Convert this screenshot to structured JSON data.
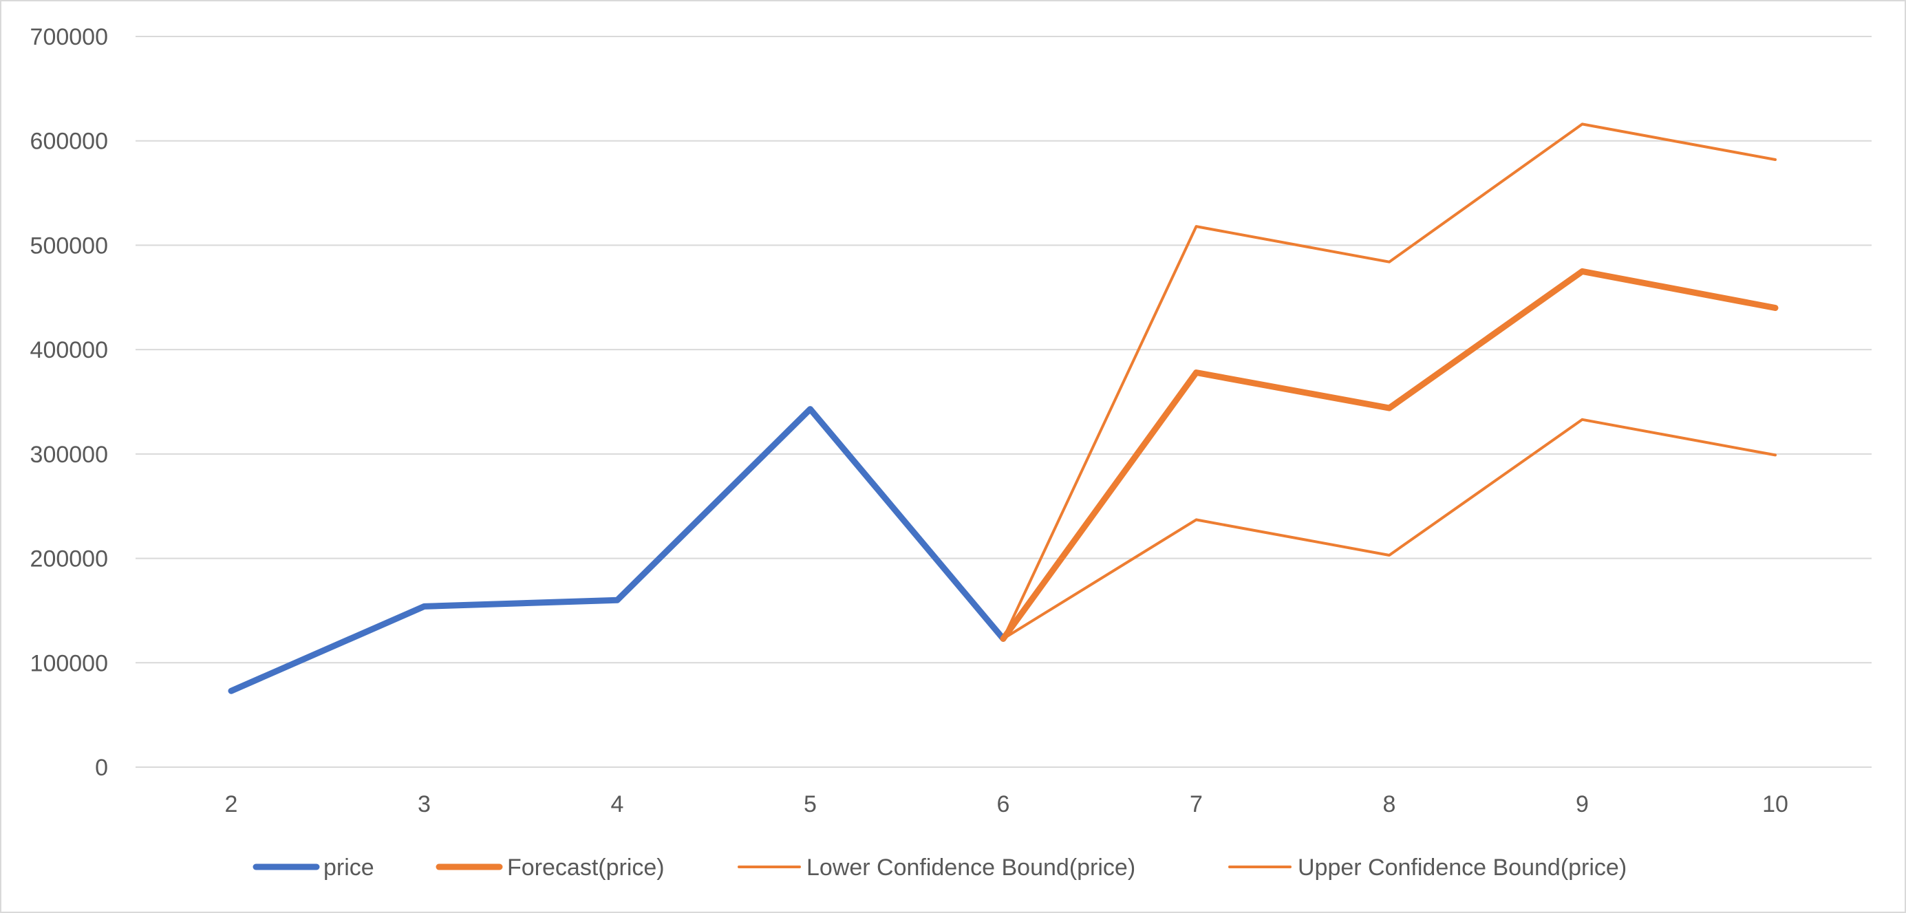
{
  "chart_data": {
    "type": "line",
    "title": "",
    "xlabel": "",
    "ylabel": "",
    "x": [
      2,
      3,
      4,
      5,
      6,
      7,
      8,
      9,
      10
    ],
    "x_tick_labels": [
      "2",
      "3",
      "4",
      "5",
      "6",
      "7",
      "8",
      "9",
      "10"
    ],
    "ylim": [
      0,
      700000
    ],
    "y_tick_values": [
      0,
      100000,
      200000,
      300000,
      400000,
      500000,
      600000,
      700000
    ],
    "y_tick_labels": [
      "0",
      "100000",
      "200000",
      "300000",
      "400000",
      "500000",
      "600000",
      "700000"
    ],
    "grid": "horizontal",
    "legend_position": "bottom",
    "series": [
      {
        "name": "price",
        "color": "#4472C4",
        "weight": "heavy",
        "points": [
          [
            2,
            73000
          ],
          [
            3,
            154000
          ],
          [
            4,
            160000
          ],
          [
            5,
            343000
          ],
          [
            6,
            123000
          ]
        ]
      },
      {
        "name": "Forecast(price)",
        "color": "#ED7D31",
        "weight": "heavy",
        "points": [
          [
            6,
            123000
          ],
          [
            7,
            378000
          ],
          [
            8,
            344000
          ],
          [
            9,
            475000
          ],
          [
            10,
            440000
          ]
        ]
      },
      {
        "name": "Lower Confidence Bound(price)",
        "color": "#ED7D31",
        "weight": "light",
        "points": [
          [
            6,
            123000
          ],
          [
            7,
            237000
          ],
          [
            8,
            203000
          ],
          [
            9,
            333000
          ],
          [
            10,
            299000
          ]
        ]
      },
      {
        "name": "Upper Confidence Bound(price)",
        "color": "#ED7D31",
        "weight": "light",
        "points": [
          [
            6,
            123000
          ],
          [
            7,
            518000
          ],
          [
            8,
            484000
          ],
          [
            9,
            616000
          ],
          [
            10,
            582000
          ]
        ]
      }
    ]
  }
}
